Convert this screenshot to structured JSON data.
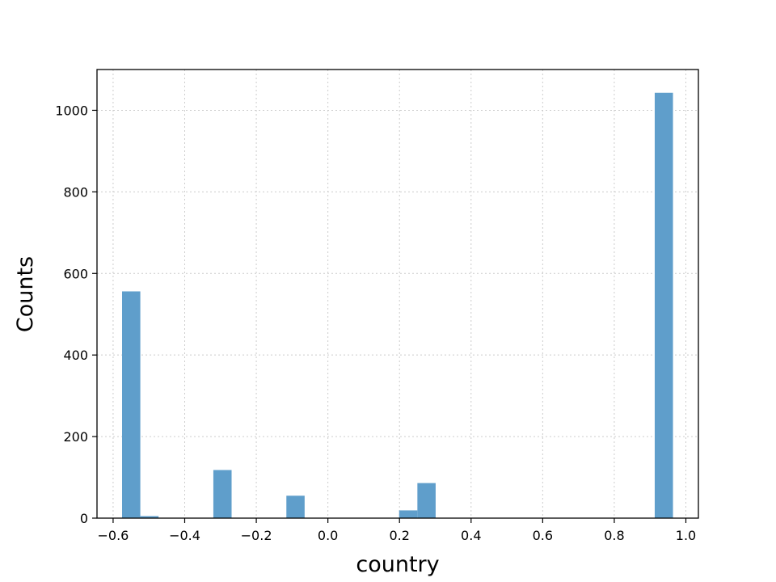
{
  "chart_data": {
    "type": "bar",
    "xlabel": "country",
    "ylabel": "Counts",
    "xlim": [
      -0.645,
      1.035
    ],
    "ylim": [
      0,
      1100
    ],
    "grid": true,
    "bar_color": "#5f9ecb",
    "bin_width": 0.051,
    "x_ticks": [
      -0.6,
      -0.4,
      -0.2,
      0.0,
      0.2,
      0.4,
      0.6,
      0.8,
      1.0
    ],
    "x_tick_labels": [
      "−0.6",
      "−0.4",
      "−0.2",
      "0.0",
      "0.2",
      "0.4",
      "0.6",
      "0.8",
      "1.0"
    ],
    "y_ticks": [
      0,
      200,
      400,
      600,
      800,
      1000
    ],
    "y_tick_labels": [
      "0",
      "200",
      "400",
      "600",
      "800",
      "1000"
    ],
    "bins": [
      {
        "x_start": -0.575,
        "x_end": -0.524,
        "count": 556
      },
      {
        "x_start": -0.524,
        "x_end": -0.473,
        "count": 5
      },
      {
        "x_start": -0.32,
        "x_end": -0.269,
        "count": 118
      },
      {
        "x_start": -0.116,
        "x_end": -0.065,
        "count": 55
      },
      {
        "x_start": 0.199,
        "x_end": 0.25,
        "count": 19
      },
      {
        "x_start": 0.25,
        "x_end": 0.301,
        "count": 86
      },
      {
        "x_start": 0.913,
        "x_end": 0.964,
        "count": 1043
      }
    ]
  }
}
